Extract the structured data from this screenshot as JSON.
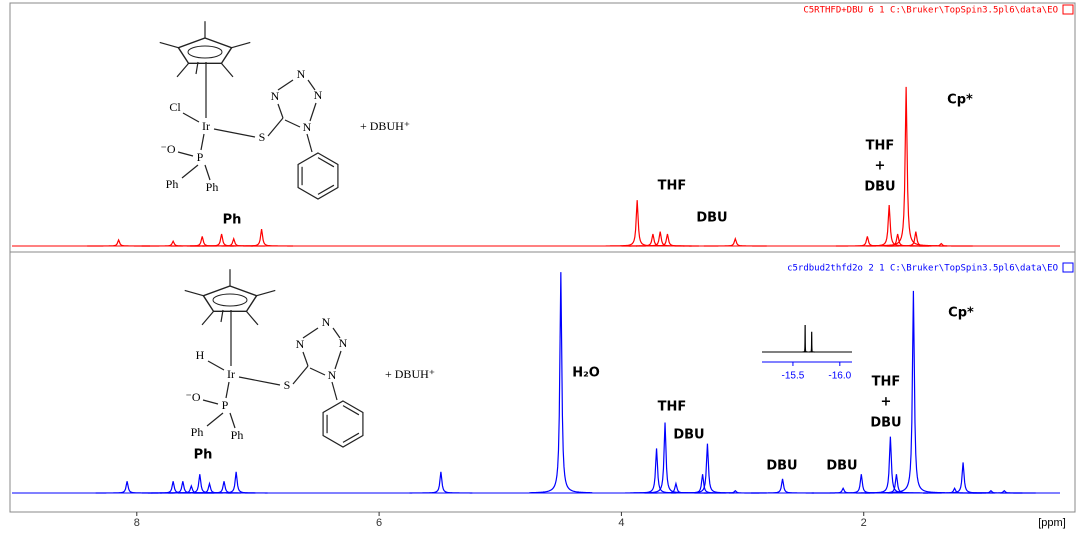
{
  "chart_data": [
    {
      "type": "spectrum",
      "header": "C5RTHFD+DBU  6  1  C:\\Bruker\\TopSpin3.5pl6\\data\\EO",
      "color": "#ff0000",
      "xlim": [
        9.03,
        0.38
      ],
      "ylim": [
        0,
        100
      ],
      "x": [
        8.15,
        7.7,
        7.46,
        7.3,
        7.2,
        6.97,
        3.87,
        3.74,
        3.68,
        3.62,
        3.06,
        1.97,
        1.79,
        1.72,
        1.65,
        1.57,
        1.36
      ],
      "values": [
        2.5,
        2,
        4,
        5,
        3,
        7,
        19,
        5,
        6,
        5,
        3,
        4,
        17,
        5,
        66,
        6,
        1
      ],
      "annotations": [
        "Ph",
        "THF",
        "DBU",
        "THF",
        "+",
        "DBU",
        "Cp*"
      ]
    },
    {
      "type": "spectrum",
      "header": "c5rdbud2thfd2o  2  1  C:\\Bruker\\TopSpin3.5pl6\\data\\EO",
      "color": "#0000ff",
      "xlim": [
        9.03,
        0.38
      ],
      "ylim": [
        0,
        100
      ],
      "xticks": [
        8,
        6,
        4,
        2
      ],
      "xlabel": "[ppm]",
      "x": [
        8.08,
        7.7,
        7.62,
        7.55,
        7.48,
        7.4,
        7.28,
        7.18,
        5.49,
        4.5,
        3.71,
        3.64,
        3.55,
        3.33,
        3.29,
        3.06,
        2.67,
        2.17,
        2.02,
        1.78,
        1.73,
        1.59,
        1.25,
        1.18,
        0.95,
        0.84
      ],
      "values": [
        5,
        5,
        5,
        3,
        8,
        4,
        5,
        9,
        9,
        94,
        19,
        30,
        4,
        8,
        21,
        1,
        6,
        2,
        8,
        24,
        8,
        86,
        2,
        13,
        1,
        1
      ],
      "annotations": [
        "Ph",
        "H₂O",
        "THF",
        "DBU",
        "DBU",
        "DBU",
        "THF",
        "+",
        "DBU",
        "Cp*"
      ]
    },
    {
      "type": "spectrum",
      "color": "#000000",
      "axis_color": "#0000ff",
      "xlim": [
        -15.17,
        -16.13
      ],
      "ylim": [
        0,
        100
      ],
      "xticks": [
        -15.5,
        {
          "value": -16,
          "label": "-16.0"
        }
      ],
      "x": [
        -15.63,
        -15.7
      ],
      "values": [
        100,
        75
      ]
    }
  ],
  "structures": [
    {
      "atoms": [
        "Cl",
        "Ir",
        "S",
        "N",
        "N",
        "N",
        "N",
        "⁻O",
        "P",
        "Ph",
        "Ph"
      ],
      "counterion": "+ DBUH⁺"
    },
    {
      "atoms": [
        "H",
        "Ir",
        "S",
        "N",
        "N",
        "N",
        "N",
        "⁻O",
        "P",
        "Ph",
        "Ph"
      ],
      "counterion": "+ DBUH⁺"
    }
  ]
}
